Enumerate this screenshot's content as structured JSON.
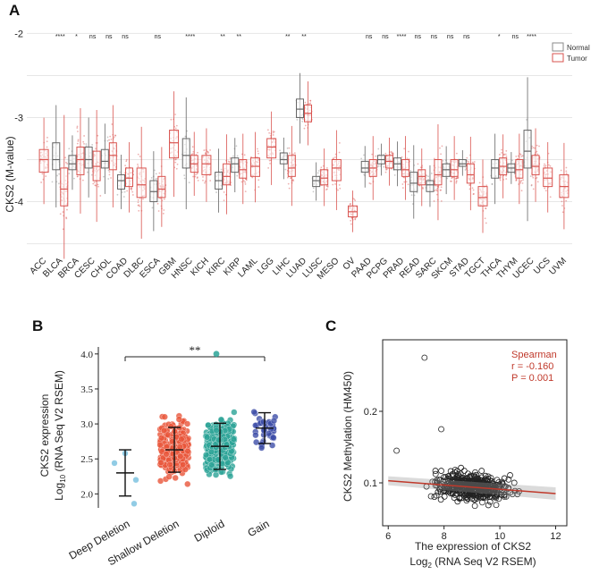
{
  "panels": {
    "a": "A",
    "b": "B",
    "c": "C"
  },
  "colors": {
    "normal": "#8a8a8a",
    "tumor": "#d9534f",
    "deep": "#7ec3e0",
    "shallow": "#e8553a",
    "diploid": "#2aa396",
    "gain": "#3d4ea8",
    "fit": "#c0392b",
    "spearman": "#c0392b"
  },
  "chart_data": [
    {
      "panel": "A",
      "type": "box",
      "ylabel": "CKS2 (M-value)",
      "ylim": [
        -4.6,
        -1.9
      ],
      "yticks": [
        "-2",
        "-3",
        "-4"
      ],
      "legend": {
        "position": "top-right",
        "entries": [
          "Normal",
          "Tumor"
        ]
      },
      "series": [
        {
          "name": "Normal"
        },
        {
          "name": "Tumor"
        }
      ],
      "categories": [
        {
          "name": "ACC",
          "sig": "",
          "tumor": [
            -3.65,
            -3.5,
            -3.38
          ]
        },
        {
          "name": "BLCA",
          "sig": "****",
          "normal": [
            -3.62,
            -3.5,
            -3.3
          ],
          "tumor": [
            -4.05,
            -3.85,
            -3.6
          ]
        },
        {
          "name": "BRCA",
          "sig": "*",
          "normal": [
            -3.62,
            -3.55,
            -3.45
          ],
          "tumor": [
            -3.68,
            -3.5,
            -3.35
          ]
        },
        {
          "name": "CESC",
          "sig": "ns",
          "normal": [
            -3.6,
            -3.5,
            -3.35
          ],
          "tumor": [
            -3.75,
            -3.58,
            -3.4
          ]
        },
        {
          "name": "CHOL",
          "sig": "ns",
          "normal": [
            -3.6,
            -3.52,
            -3.38
          ],
          "tumor": [
            -3.62,
            -3.45,
            -3.3
          ]
        },
        {
          "name": "COAD",
          "sig": "ns",
          "normal": [
            -3.85,
            -3.75,
            -3.68
          ],
          "tumor": [
            -3.82,
            -3.72,
            -3.6
          ]
        },
        {
          "name": "DLBC",
          "sig": "",
          "tumor": [
            -3.95,
            -3.8,
            -3.6
          ]
        },
        {
          "name": "ESCA",
          "sig": "ns",
          "normal": [
            -4.0,
            -3.88,
            -3.75
          ],
          "tumor": [
            -3.95,
            -3.85,
            -3.7
          ]
        },
        {
          "name": "GBM",
          "sig": "",
          "tumor": [
            -3.48,
            -3.3,
            -3.15
          ]
        },
        {
          "name": "HNSC",
          "sig": "****",
          "normal": [
            -3.6,
            -3.45,
            -3.25
          ],
          "tumor": [
            -3.65,
            -3.55,
            -3.45
          ]
        },
        {
          "name": "KICH",
          "sig": "",
          "tumor": [
            -3.68,
            -3.55,
            -3.45
          ]
        },
        {
          "name": "KIRC",
          "sig": "**",
          "normal": [
            -3.85,
            -3.75,
            -3.65
          ],
          "tumor": [
            -3.8,
            -3.7,
            -3.55
          ]
        },
        {
          "name": "KIRP",
          "sig": "**",
          "normal": [
            -3.65,
            -3.55,
            -3.48
          ],
          "tumor": [
            -3.72,
            -3.62,
            -3.5
          ]
        },
        {
          "name": "LAML",
          "sig": "",
          "tumor": [
            -3.7,
            -3.58,
            -3.48
          ]
        },
        {
          "name": "LGG",
          "sig": "",
          "tumor": [
            -3.48,
            -3.35,
            -3.25
          ]
        },
        {
          "name": "LIHC",
          "sig": "**",
          "normal": [
            -3.55,
            -3.5,
            -3.42
          ],
          "tumor": [
            -3.7,
            -3.6,
            -3.45
          ]
        },
        {
          "name": "LUAD",
          "sig": "**",
          "normal": [
            -3.0,
            -2.9,
            -2.78
          ],
          "tumor": [
            -3.05,
            -2.95,
            -2.85
          ]
        },
        {
          "name": "LUSC",
          "sig": "",
          "normal": [
            -3.82,
            -3.75,
            -3.7
          ],
          "tumor": [
            -3.8,
            -3.72,
            -3.62
          ]
        },
        {
          "name": "MESO",
          "sig": "",
          "tumor": [
            -3.75,
            -3.6,
            -3.5
          ]
        },
        {
          "name": "OV",
          "sig": "",
          "tumor": [
            -4.18,
            -4.12,
            -4.05
          ]
        },
        {
          "name": "PAAD",
          "sig": "ns",
          "normal": [
            -3.65,
            -3.6,
            -3.52
          ],
          "tumor": [
            -3.7,
            -3.6,
            -3.5
          ]
        },
        {
          "name": "PCPG",
          "sig": "ns",
          "normal": [
            -3.55,
            -3.5,
            -3.45
          ],
          "tumor": [
            -3.6,
            -3.52,
            -3.45
          ]
        },
        {
          "name": "PRAD",
          "sig": "****",
          "normal": [
            -3.62,
            -3.55,
            -3.48
          ],
          "tumor": [
            -3.7,
            -3.62,
            -3.5
          ]
        },
        {
          "name": "READ",
          "sig": "ns",
          "normal": [
            -3.88,
            -3.78,
            -3.65
          ],
          "tumor": [
            -3.8,
            -3.7,
            -3.62
          ]
        },
        {
          "name": "SARC",
          "sig": "ns",
          "normal": [
            -3.88,
            -3.8,
            -3.75
          ],
          "tumor": [
            -3.8,
            -3.68,
            -3.5
          ]
        },
        {
          "name": "SKCM",
          "sig": "ns",
          "normal": [
            -3.7,
            -3.62,
            -3.55
          ],
          "tumor": [
            -3.7,
            -3.62,
            -3.5
          ]
        },
        {
          "name": "STAD",
          "sig": "ns",
          "normal": [
            -3.58,
            -3.55,
            -3.5
          ],
          "tumor": [
            -3.78,
            -3.68,
            -3.55
          ]
        },
        {
          "name": "TGCT",
          "sig": "",
          "tumor": [
            -4.05,
            -3.95,
            -3.82
          ]
        },
        {
          "name": "THCA",
          "sig": "*",
          "normal": [
            -3.72,
            -3.6,
            -3.5
          ],
          "tumor": [
            -3.68,
            -3.58,
            -3.48
          ]
        },
        {
          "name": "THYM",
          "sig": "ns",
          "normal": [
            -3.65,
            -3.6,
            -3.55
          ],
          "tumor": [
            -3.72,
            -3.62,
            -3.5
          ]
        },
        {
          "name": "UCEC",
          "sig": "****",
          "normal": [
            -3.6,
            -3.4,
            -3.15
          ],
          "tumor": [
            -3.68,
            -3.58,
            -3.45
          ]
        },
        {
          "name": "UCS",
          "sig": "",
          "tumor": [
            -3.82,
            -3.72,
            -3.6
          ]
        },
        {
          "name": "UVM",
          "sig": "",
          "tumor": [
            -3.95,
            -3.82,
            -3.68
          ]
        }
      ]
    },
    {
      "panel": "B",
      "type": "scatter",
      "ylabel": [
        "CKS2 expression",
        "Log",
        "10",
        "(RNA Seq V2 RSEM)"
      ],
      "ylim": [
        1.8,
        4.1
      ],
      "yticks": [
        "2.0",
        "2.5",
        "3.0",
        "3.5",
        "4.0"
      ],
      "annotation": "**",
      "categories": [
        "Deep Deletion",
        "Shallow Deletion",
        "Diploid",
        "Gain"
      ],
      "groups": [
        {
          "name": "Deep Deletion",
          "mean": 2.3,
          "sd": 0.33,
          "points": [
            2.44,
            2.2,
            2.58,
            1.86
          ]
        },
        {
          "name": "Shallow Deletion",
          "mean": 2.63,
          "sd": 0.32,
          "range": [
            1.85,
            3.55
          ]
        },
        {
          "name": "Diploid",
          "mean": 2.68,
          "sd": 0.33,
          "range": [
            1.85,
            4.0
          ]
        },
        {
          "name": "Gain",
          "mean": 2.94,
          "sd": 0.22,
          "range": [
            2.5,
            3.4
          ]
        }
      ]
    },
    {
      "panel": "C",
      "type": "scatter",
      "xlabel": [
        "The expression of CKS2",
        "Log",
        "2",
        "(RNA Seq V2 RSEM)"
      ],
      "ylabel": "CKS2 Methylation (HM450)",
      "xlim": [
        5.8,
        12.4
      ],
      "ylim": [
        0.04,
        0.3
      ],
      "xticks": [
        "6",
        "8",
        "10",
        "12"
      ],
      "yticks": [
        "0.1",
        "0.2"
      ],
      "stats": {
        "title": "Spearman",
        "r": "r = -0.160",
        "p": "P = 0.001"
      },
      "fit": {
        "x": [
          6.0,
          12.0
        ],
        "y": [
          0.103,
          0.085
        ]
      },
      "outliers": [
        {
          "x": 7.3,
          "y": 0.275
        },
        {
          "x": 7.9,
          "y": 0.175
        },
        {
          "x": 6.3,
          "y": 0.145
        }
      ]
    }
  ]
}
